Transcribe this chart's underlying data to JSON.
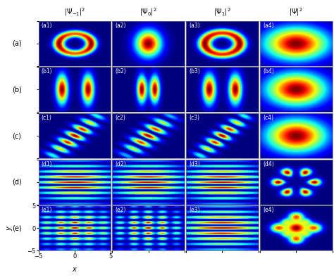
{
  "title_col1": "$|\\Psi_{-1}|^2$",
  "title_col2": "$|\\Psi_0|^2$",
  "title_col3": "$|\\Psi_1|^2$",
  "title_col4": "$|\\Psi|^2$",
  "row_labels": [
    "(a)",
    "(b)",
    "(c)",
    "(d)",
    "(e)"
  ],
  "panel_labels": [
    [
      "(a1)",
      "(a2)",
      "(a3)",
      "(a4)"
    ],
    [
      "(b1)",
      "(b2)",
      "(b3)",
      "(b4)"
    ],
    [
      "(c1)",
      "(c2)",
      "(c3)",
      "(c4)"
    ],
    [
      "(d1)",
      "(d2)",
      "(d3)",
      "(d4)"
    ],
    [
      "(e1)",
      "(e2)",
      "(e3)",
      "(e4)"
    ]
  ],
  "xlim": [
    -5,
    5
  ],
  "ylim": [
    -5,
    5
  ],
  "xticks": [
    -5,
    0,
    5
  ],
  "yticks": [
    -5,
    0,
    5
  ],
  "xlabel": "$x$",
  "ylabel": "$y$",
  "colormap": "jet",
  "grid_size": 300
}
